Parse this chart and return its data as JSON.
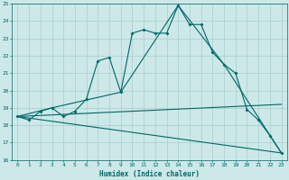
{
  "title": "",
  "xlabel": "Humidex (Indice chaleur)",
  "xlim": [
    -0.5,
    23.5
  ],
  "ylim": [
    16,
    25
  ],
  "bg_color": "#cce8e8",
  "grid_color": "#aacccc",
  "line_color": "#006666",
  "lines": [
    {
      "x": [
        0,
        1,
        2,
        3,
        4,
        5,
        6,
        7,
        8,
        9,
        10,
        11,
        12,
        13,
        14,
        15,
        16,
        17,
        18,
        19,
        20,
        21,
        22,
        23
      ],
      "y": [
        18.5,
        18.3,
        18.8,
        19.0,
        18.5,
        18.8,
        19.5,
        21.7,
        21.9,
        19.9,
        23.3,
        23.5,
        23.3,
        23.3,
        24.9,
        23.8,
        23.8,
        22.2,
        21.5,
        21.0,
        18.9,
        18.3,
        17.4,
        16.4
      ],
      "markers": true
    },
    {
      "x": [
        0,
        3,
        9,
        14,
        18,
        23
      ],
      "y": [
        18.5,
        19.0,
        19.9,
        24.9,
        21.5,
        16.4
      ],
      "markers": false
    },
    {
      "x": [
        0,
        23
      ],
      "y": [
        18.5,
        19.2
      ],
      "markers": false
    },
    {
      "x": [
        0,
        23
      ],
      "y": [
        18.5,
        16.4
      ],
      "markers": false
    }
  ],
  "xticks": [
    0,
    1,
    2,
    3,
    4,
    5,
    6,
    7,
    8,
    9,
    10,
    11,
    12,
    13,
    14,
    15,
    16,
    17,
    18,
    19,
    20,
    21,
    22,
    23
  ],
  "xtick_labels": [
    "0",
    "1",
    "2",
    "3",
    "4",
    "5",
    "6",
    "7",
    "8",
    "9",
    "10",
    "11",
    "12",
    "13",
    "14",
    "15",
    "16",
    "17",
    "18",
    "19",
    "20",
    "21",
    "22",
    "23"
  ],
  "yticks": [
    16,
    17,
    18,
    19,
    20,
    21,
    22,
    23,
    24,
    25
  ],
  "ytick_labels": [
    "16",
    "17",
    "18",
    "19",
    "20",
    "21",
    "22",
    "23",
    "24",
    "25"
  ]
}
